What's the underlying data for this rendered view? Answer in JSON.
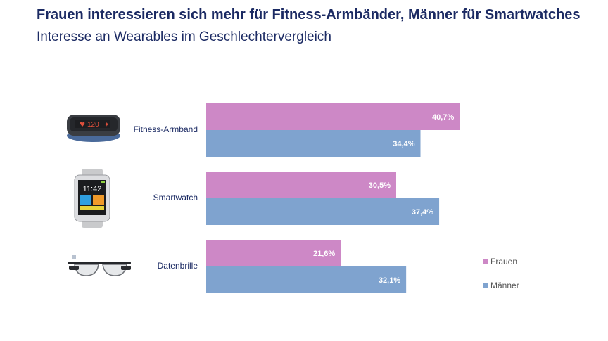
{
  "header": {
    "title": "Frauen interessieren sich mehr für Fitness-Armbänder, Männer für Smartwatches",
    "subtitle": "Interesse an Wearables im Geschlechtervergleich"
  },
  "icons": [
    "fitness-band-icon",
    "smartwatch-icon",
    "smart-glasses-icon"
  ],
  "watch_icon": {
    "time": "11:42"
  },
  "band_icon": {
    "value": "120"
  },
  "chart_data": {
    "type": "bar",
    "orientation": "horizontal",
    "categories": [
      "Fitness-Armband",
      "Smartwatch",
      "Datenbrille"
    ],
    "series": [
      {
        "name": "Frauen",
        "values": [
          40.7,
          30.5,
          21.6
        ],
        "labels": [
          "40,7%",
          "30,5%",
          "21,6%"
        ],
        "color": "#cd88c6"
      },
      {
        "name": "Männer",
        "values": [
          34.4,
          37.4,
          32.1
        ],
        "labels": [
          "34,4%",
          "37,4%",
          "32,1%"
        ],
        "color": "#7fa3cf"
      }
    ],
    "xlim": [
      0,
      60
    ],
    "grid": false,
    "legend_position": "right"
  }
}
